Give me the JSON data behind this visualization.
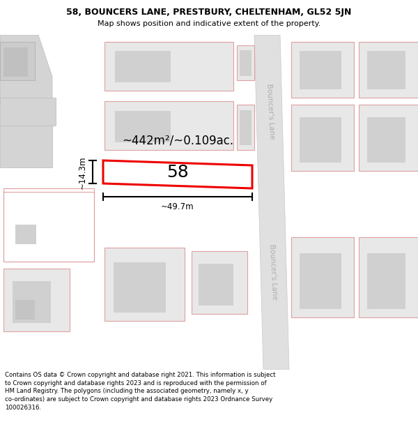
{
  "title_line1": "58, BOUNCERS LANE, PRESTBURY, CHELTENHAM, GL52 5JN",
  "title_line2": "Map shows position and indicative extent of the property.",
  "footer_line1": "Contains OS data © Crown copyright and database right 2021. This information is subject",
  "footer_line2": "to Crown copyright and database rights 2023 and is reproduced with the permission of",
  "footer_line3": "HM Land Registry. The polygons (including the associated geometry, namely x, y",
  "footer_line4": "co-ordinates) are subject to Crown copyright and database rights 2023 Ordnance Survey",
  "footer_line5": "100026316.",
  "bg_color": "#ffffff",
  "property_label": "58",
  "area_label": "~442m²/~0.109ac.",
  "width_label": "~49.7m",
  "height_label": "~14.3m",
  "road_label_top": "Bouncer's Lane",
  "road_label_bottom": "Bouncer's Lane",
  "building_face": "#e8e8e8",
  "building_inner": "#d0d0d0",
  "building_edge": "#e0a0a0",
  "road_fill": "#e0e0e0",
  "road_edge": "#c8c8c8",
  "red_outline": "#ee0000",
  "prop_fill": "#ffffff",
  "dim_color": "#000000",
  "area_color": "#000000",
  "road_text_color": "#b0b0b0"
}
